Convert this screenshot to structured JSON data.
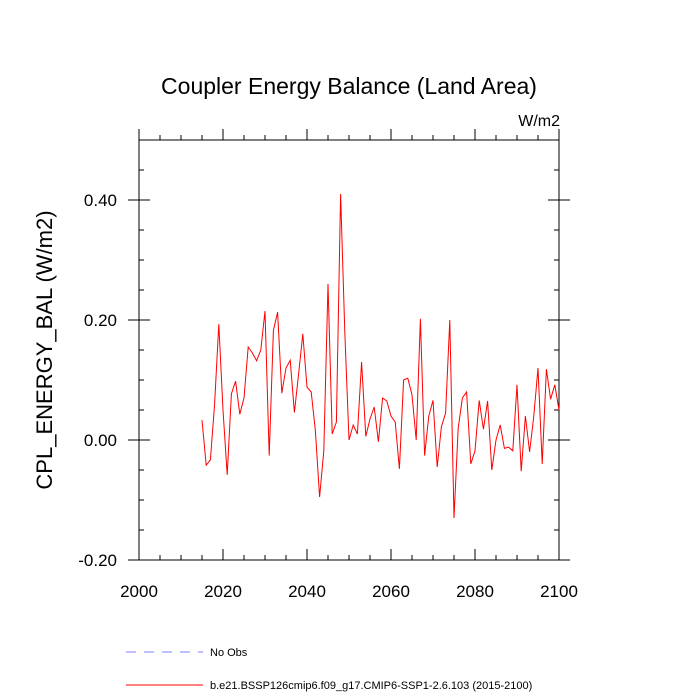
{
  "chart_data": {
    "type": "line",
    "title": "Coupler Energy Balance (Land Area)",
    "units": "W/m2",
    "xlabel": "",
    "ylabel": "CPL_ENERGY_BAL  (W/m2)",
    "xlim": [
      2000,
      2100
    ],
    "ylim": [
      -0.2,
      0.5
    ],
    "xticks": [
      2000,
      2020,
      2040,
      2060,
      2080,
      2100
    ],
    "xtick_labels": [
      "2000",
      "2020",
      "2040",
      "2060",
      "2080",
      "2100"
    ],
    "yticks": [
      -0.2,
      0.0,
      0.2,
      0.4
    ],
    "ytick_labels": [
      "-0.20",
      "0.00",
      "0.20",
      "0.40"
    ],
    "grid": false,
    "series": [
      {
        "name": "b.e21.BSSP126cmip6.f09_g17.CMIP6-SSP1-2.6.103 (2015-2100)",
        "color": "#ff0000",
        "x": [
          2015,
          2016,
          2017,
          2018,
          2019,
          2020,
          2021,
          2022,
          2023,
          2024,
          2025,
          2026,
          2027,
          2028,
          2029,
          2030,
          2031,
          2032,
          2033,
          2034,
          2035,
          2036,
          2037,
          2038,
          2039,
          2040,
          2041,
          2042,
          2043,
          2044,
          2045,
          2046,
          2047,
          2048,
          2049,
          2050,
          2051,
          2052,
          2053,
          2054,
          2055,
          2056,
          2057,
          2058,
          2059,
          2060,
          2061,
          2062,
          2063,
          2064,
          2065,
          2066,
          2067,
          2068,
          2069,
          2070,
          2071,
          2072,
          2073,
          2074,
          2075,
          2076,
          2077,
          2078,
          2079,
          2080,
          2081,
          2082,
          2083,
          2084,
          2085,
          2086,
          2087,
          2088,
          2089,
          2090,
          2091,
          2092,
          2093,
          2094,
          2095,
          2096,
          2097,
          2098,
          2099,
          2100
        ],
        "values": [
          0.033,
          -0.042,
          -0.033,
          0.06,
          0.193,
          0.05,
          -0.058,
          0.077,
          0.098,
          0.043,
          0.07,
          0.155,
          0.145,
          0.132,
          0.15,
          0.215,
          -0.026,
          0.183,
          0.213,
          0.078,
          0.12,
          0.133,
          0.046,
          0.11,
          0.177,
          0.088,
          0.08,
          0.015,
          -0.095,
          -0.018,
          0.26,
          0.01,
          0.03,
          0.41,
          0.18,
          0.0,
          0.025,
          0.01,
          0.13,
          0.006,
          0.035,
          0.055,
          -0.003,
          0.07,
          0.065,
          0.04,
          0.03,
          -0.048,
          0.1,
          0.103,
          0.075,
          0.0,
          0.202,
          -0.026,
          0.04,
          0.066,
          -0.045,
          0.022,
          0.045,
          0.2,
          -0.13,
          0.02,
          0.07,
          0.08,
          -0.04,
          -0.018,
          0.066,
          0.018,
          0.065,
          -0.05,
          0.0,
          0.025,
          -0.014,
          -0.012,
          -0.018,
          0.092,
          -0.052,
          0.04,
          -0.02,
          0.04,
          0.12,
          -0.04,
          0.118,
          0.068,
          0.092,
          0.05
        ]
      },
      {
        "name": "No Obs",
        "color": "#8080ff",
        "x": [],
        "values": []
      }
    ],
    "legend_position": "bottom-left"
  }
}
